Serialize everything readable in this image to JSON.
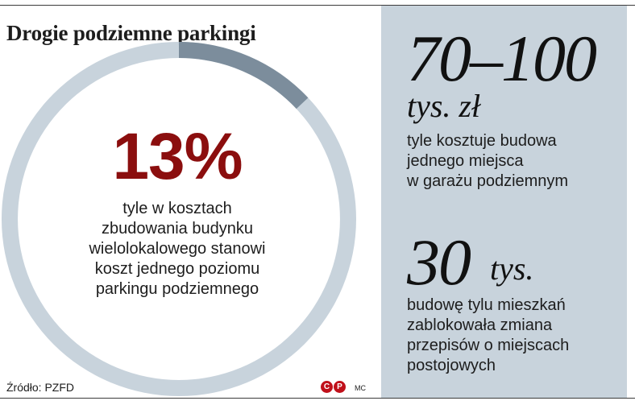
{
  "title": "Drogie podziemne parkingi",
  "left": {
    "percent_label": "13%",
    "percent_value": 13,
    "description_lines": [
      "tyle w kosztach",
      "zbudowania budynku",
      "wielolokalowego stanowi",
      "koszt jednego poziomu",
      "parkingu podziemnego"
    ]
  },
  "stat1": {
    "number": "70–100",
    "unit": "tys. zł",
    "description_lines": [
      "tyle kosztuje budowa",
      "jednego miejsca",
      "w garażu podziemnym"
    ]
  },
  "stat2": {
    "number": "30",
    "unit": "tys.",
    "description_lines": [
      "budowę tylu mieszkań",
      "zablokowała zmiana",
      "przepisów o miejscach",
      "postojowych"
    ]
  },
  "footer": {
    "source": "Źródło: PZFD",
    "logo_letters": [
      "C",
      "P"
    ],
    "author": "MC"
  },
  "colors": {
    "donut_track": "#c8d3dc",
    "donut_highlight": "#7c8d9c",
    "accent_red": "#8b0e0e",
    "panel_bg": "#c8d3dc",
    "logo_red": "#c0101a"
  }
}
